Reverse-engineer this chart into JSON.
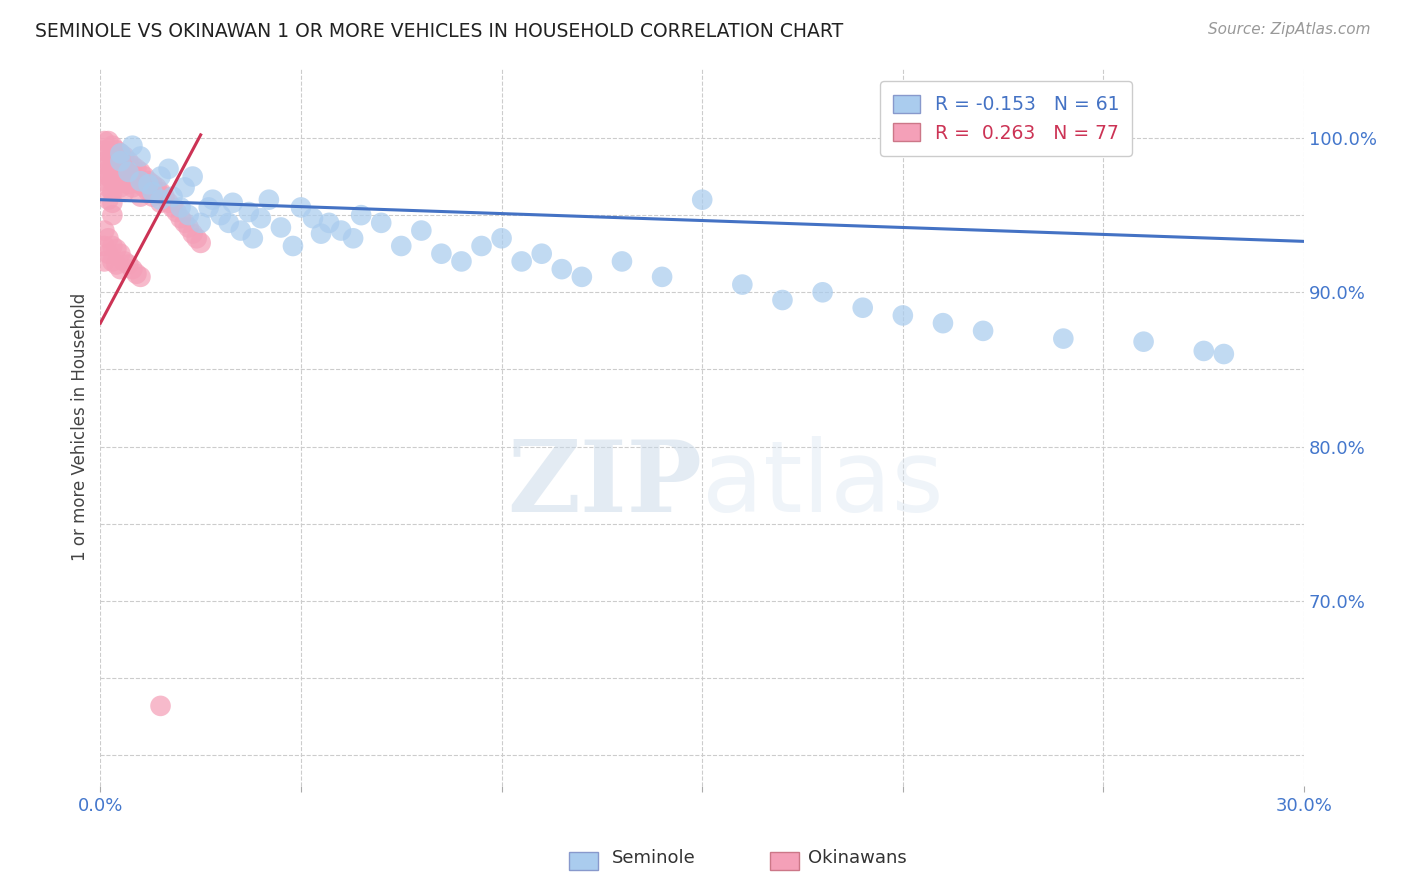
{
  "title": "SEMINOLE VS OKINAWAN 1 OR MORE VEHICLES IN HOUSEHOLD CORRELATION CHART",
  "source": "Source: ZipAtlas.com",
  "ylabel_label": "1 or more Vehicles in Household",
  "xlim": [
    0.0,
    0.3
  ],
  "ylim": [
    0.58,
    1.045
  ],
  "x_ticks": [
    0.0,
    0.05,
    0.1,
    0.15,
    0.2,
    0.25,
    0.3
  ],
  "x_tick_labels": [
    "0.0%",
    "",
    "",
    "",
    "",
    "",
    "30.0%"
  ],
  "y_ticks": [
    0.6,
    0.65,
    0.7,
    0.75,
    0.8,
    0.85,
    0.9,
    0.95,
    1.0
  ],
  "y_tick_labels": [
    "",
    "",
    "70.0%",
    "",
    "80.0%",
    "",
    "90.0%",
    "",
    "100.0%"
  ],
  "seminole_R": -0.153,
  "seminole_N": 61,
  "okinawan_R": 0.263,
  "okinawan_N": 77,
  "seminole_color": "#aaccee",
  "okinawan_color": "#f4a0b8",
  "seminole_line_color": "#4472c4",
  "okinawan_line_color": "#cc3355",
  "watermark_zip": "ZIP",
  "watermark_atlas": "atlas",
  "seminole_x": [
    0.005,
    0.005,
    0.007,
    0.008,
    0.01,
    0.01,
    0.012,
    0.013,
    0.015,
    0.015,
    0.017,
    0.018,
    0.02,
    0.021,
    0.022,
    0.023,
    0.025,
    0.027,
    0.028,
    0.03,
    0.032,
    0.033,
    0.035,
    0.037,
    0.038,
    0.04,
    0.042,
    0.045,
    0.048,
    0.05,
    0.053,
    0.055,
    0.057,
    0.06,
    0.063,
    0.065,
    0.07,
    0.075,
    0.08,
    0.085,
    0.09,
    0.095,
    0.1,
    0.105,
    0.11,
    0.115,
    0.12,
    0.13,
    0.14,
    0.15,
    0.16,
    0.17,
    0.18,
    0.19,
    0.2,
    0.21,
    0.22,
    0.24,
    0.26,
    0.275,
    0.28
  ],
  "seminole_y": [
    0.99,
    0.985,
    0.978,
    0.995,
    0.972,
    0.988,
    0.97,
    0.965,
    0.975,
    0.96,
    0.98,
    0.962,
    0.955,
    0.968,
    0.95,
    0.975,
    0.945,
    0.955,
    0.96,
    0.95,
    0.945,
    0.958,
    0.94,
    0.952,
    0.935,
    0.948,
    0.96,
    0.942,
    0.93,
    0.955,
    0.948,
    0.938,
    0.945,
    0.94,
    0.935,
    0.95,
    0.945,
    0.93,
    0.94,
    0.925,
    0.92,
    0.93,
    0.935,
    0.92,
    0.925,
    0.915,
    0.91,
    0.92,
    0.91,
    0.96,
    0.905,
    0.895,
    0.9,
    0.89,
    0.885,
    0.88,
    0.875,
    0.87,
    0.868,
    0.862,
    0.86
  ],
  "okinawan_x": [
    0.001,
    0.001,
    0.001,
    0.001,
    0.001,
    0.002,
    0.002,
    0.002,
    0.002,
    0.002,
    0.002,
    0.003,
    0.003,
    0.003,
    0.003,
    0.003,
    0.003,
    0.003,
    0.004,
    0.004,
    0.004,
    0.004,
    0.005,
    0.005,
    0.005,
    0.005,
    0.006,
    0.006,
    0.006,
    0.006,
    0.007,
    0.007,
    0.007,
    0.008,
    0.008,
    0.008,
    0.009,
    0.009,
    0.01,
    0.01,
    0.01,
    0.011,
    0.011,
    0.012,
    0.012,
    0.013,
    0.013,
    0.014,
    0.015,
    0.015,
    0.016,
    0.017,
    0.018,
    0.019,
    0.02,
    0.021,
    0.022,
    0.023,
    0.024,
    0.025,
    0.001,
    0.001,
    0.001,
    0.002,
    0.002,
    0.003,
    0.003,
    0.004,
    0.004,
    0.005,
    0.005,
    0.006,
    0.007,
    0.008,
    0.009,
    0.01,
    0.015
  ],
  "okinawan_y": [
    0.998,
    0.992,
    0.985,
    0.978,
    0.972,
    0.998,
    0.99,
    0.982,
    0.975,
    0.968,
    0.96,
    0.995,
    0.988,
    0.98,
    0.972,
    0.965,
    0.958,
    0.95,
    0.992,
    0.985,
    0.977,
    0.97,
    0.99,
    0.982,
    0.975,
    0.968,
    0.988,
    0.98,
    0.972,
    0.965,
    0.985,
    0.978,
    0.97,
    0.982,
    0.975,
    0.968,
    0.98,
    0.972,
    0.978,
    0.97,
    0.962,
    0.975,
    0.968,
    0.972,
    0.965,
    0.97,
    0.962,
    0.968,
    0.965,
    0.958,
    0.962,
    0.958,
    0.955,
    0.952,
    0.948,
    0.945,
    0.942,
    0.938,
    0.935,
    0.932,
    0.94,
    0.93,
    0.92,
    0.935,
    0.925,
    0.93,
    0.92,
    0.928,
    0.918,
    0.925,
    0.915,
    0.92,
    0.918,
    0.915,
    0.912,
    0.91,
    0.632
  ],
  "sem_line_x": [
    0.0,
    0.3
  ],
  "sem_line_y": [
    0.96,
    0.933
  ],
  "oki_line_x": [
    0.0,
    0.025
  ],
  "oki_line_y": [
    0.88,
    1.002
  ]
}
